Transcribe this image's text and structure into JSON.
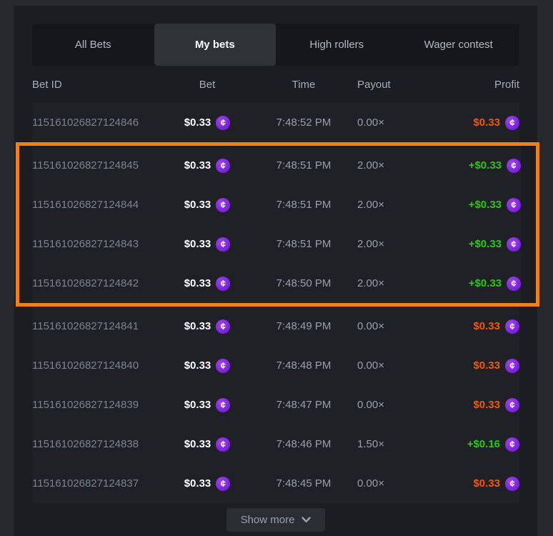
{
  "colors": {
    "panel_background": "#1b1d22",
    "page_background": "#26282c",
    "loss_orange": "#ed5a0b",
    "win_green": "#2ec50f",
    "coin_purple": "#8b2be2",
    "highlight_border_orange": "#f0801d",
    "active_tab_background": "#2f3237"
  },
  "tabs": [
    {
      "label": "All Bets",
      "active": false
    },
    {
      "label": "My bets",
      "active": true
    },
    {
      "label": "High rollers",
      "active": false
    },
    {
      "label": "Wager contest",
      "active": false
    }
  ],
  "table": {
    "columns": [
      "Bet ID",
      "Bet",
      "Time",
      "Payout",
      "Profit"
    ],
    "coin_symbol": "¢",
    "coin_icon_name": "cent-coin-icon",
    "rows": [
      {
        "bet_id": "115161026827124846",
        "bet": "$0.33",
        "time": "7:48:52 PM",
        "payout": "0.00×",
        "profit": "$0.33",
        "result": "loss",
        "highlighted": false
      },
      {
        "bet_id": "115161026827124845",
        "bet": "$0.33",
        "time": "7:48:51 PM",
        "payout": "2.00×",
        "profit": "+$0.33",
        "result": "win",
        "highlighted": true
      },
      {
        "bet_id": "115161026827124844",
        "bet": "$0.33",
        "time": "7:48:51 PM",
        "payout": "2.00×",
        "profit": "+$0.33",
        "result": "win",
        "highlighted": true
      },
      {
        "bet_id": "115161026827124843",
        "bet": "$0.33",
        "time": "7:48:51 PM",
        "payout": "2.00×",
        "profit": "+$0.33",
        "result": "win",
        "highlighted": true
      },
      {
        "bet_id": "115161026827124842",
        "bet": "$0.33",
        "time": "7:48:50 PM",
        "payout": "2.00×",
        "profit": "+$0.33",
        "result": "win",
        "highlighted": true
      },
      {
        "bet_id": "115161026827124841",
        "bet": "$0.33",
        "time": "7:48:49 PM",
        "payout": "0.00×",
        "profit": "$0.33",
        "result": "loss",
        "highlighted": false
      },
      {
        "bet_id": "115161026827124840",
        "bet": "$0.33",
        "time": "7:48:48 PM",
        "payout": "0.00×",
        "profit": "$0.33",
        "result": "loss",
        "highlighted": false
      },
      {
        "bet_id": "115161026827124839",
        "bet": "$0.33",
        "time": "7:48:47 PM",
        "payout": "0.00×",
        "profit": "$0.33",
        "result": "loss",
        "highlighted": false
      },
      {
        "bet_id": "115161026827124838",
        "bet": "$0.33",
        "time": "7:48:46 PM",
        "payout": "1.50×",
        "profit": "+$0.16",
        "result": "win",
        "highlighted": false
      },
      {
        "bet_id": "115161026827124837",
        "bet": "$0.33",
        "time": "7:48:45 PM",
        "payout": "0.00×",
        "profit": "$0.33",
        "result": "loss",
        "highlighted": false
      }
    ]
  },
  "show_more": {
    "label": "Show more",
    "icon": "chevron-down"
  }
}
